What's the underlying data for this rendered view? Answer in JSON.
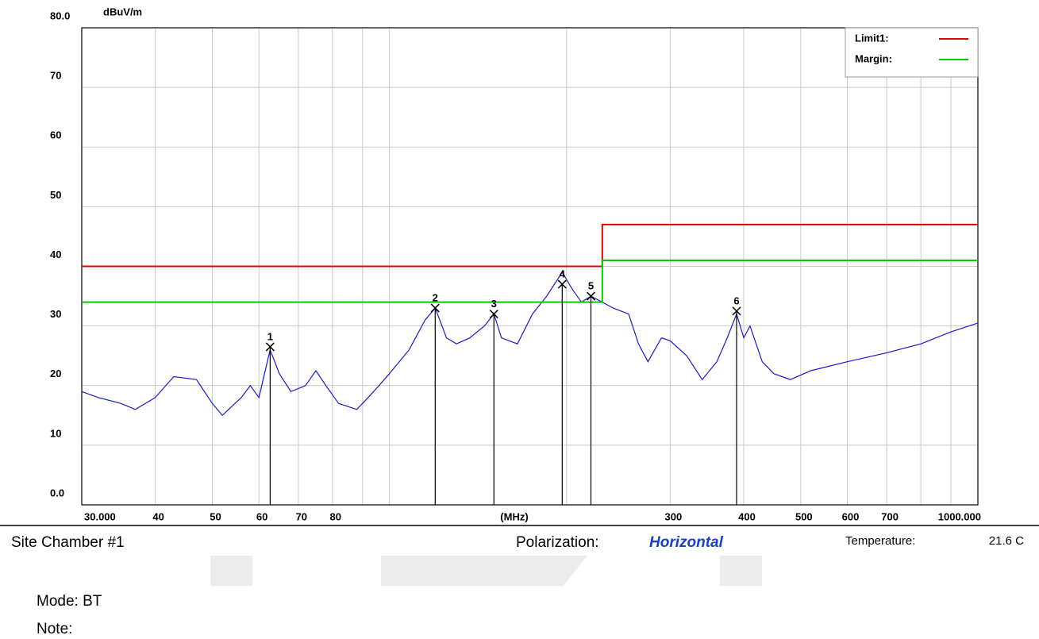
{
  "chart_data": {
    "type": "line",
    "y_label": "dBuV/m",
    "x_label": "(MHz)",
    "xscale": "log",
    "xlim": [
      30,
      1000
    ],
    "xticks": [
      {
        "value": 30,
        "label": "30.000"
      },
      40,
      50,
      60,
      70,
      80,
      300,
      400,
      500,
      600,
      700,
      {
        "value": 1000,
        "label": "1000.000"
      }
    ],
    "xgrid": [
      90,
      100,
      200,
      800,
      900
    ],
    "ylim": [
      0,
      80
    ],
    "yticks": [
      {
        "value": 0,
        "label": "0.0"
      },
      10,
      20,
      30,
      40,
      50,
      60,
      70,
      {
        "value": 80,
        "label": "80.0"
      }
    ],
    "grid": true,
    "legend": "upper right",
    "series": [
      {
        "name": "Limit1:",
        "color": "#e00000",
        "x": [
          30,
          230,
          230,
          1000
        ],
        "values": [
          40,
          40,
          47,
          47
        ]
      },
      {
        "name": "Margin:",
        "color": "#00cc00",
        "x": [
          30,
          230,
          230,
          1000
        ],
        "values": [
          34,
          34,
          41,
          41
        ]
      }
    ],
    "trace": {
      "color": "#1a1acc",
      "x": [
        30,
        32,
        35,
        37,
        40,
        43,
        47,
        50,
        52,
        56,
        58,
        60,
        62.7,
        65,
        68,
        72,
        75,
        78,
        82,
        88,
        92,
        96,
        100,
        108,
        115,
        119.6,
        125,
        130,
        137,
        145,
        150.5,
        155,
        165,
        175,
        185,
        196.6,
        205,
        212,
        220,
        230,
        240,
        255,
        265,
        275,
        290,
        300,
        320,
        340,
        360,
        375,
        389,
        400,
        410,
        430,
        450,
        480,
        520,
        600,
        700,
        800,
        900,
        1000
      ],
      "values": [
        19,
        18,
        17,
        16,
        18,
        21.5,
        21,
        17,
        15,
        18,
        20,
        18,
        26,
        22,
        19,
        20,
        22.5,
        20,
        17,
        16,
        18,
        20,
        22,
        26,
        31,
        33,
        28,
        27,
        28,
        30,
        32,
        28,
        27,
        32,
        35,
        39,
        36,
        34,
        35,
        34,
        33,
        32,
        27,
        24,
        28,
        27.5,
        25,
        21,
        24,
        28,
        32,
        28,
        30,
        24,
        22,
        21,
        22.5,
        24,
        25.5,
        27,
        29,
        30.5
      ]
    },
    "markers": {
      "labels": [
        "1",
        "2",
        "3",
        "4",
        "5",
        "6"
      ],
      "x": [
        62.7,
        119.6,
        150.5,
        196.6,
        220,
        389
      ],
      "values": [
        26.5,
        33,
        32,
        37,
        35,
        32.5
      ]
    }
  },
  "info": {
    "site": "Site  Chamber #1",
    "polarization_label": "Polarization:",
    "polarization": "Horizontal",
    "temperature_label": "Temperature:",
    "temperature": "21.6 C",
    "mode": "Mode: BT",
    "note": "Note:"
  }
}
